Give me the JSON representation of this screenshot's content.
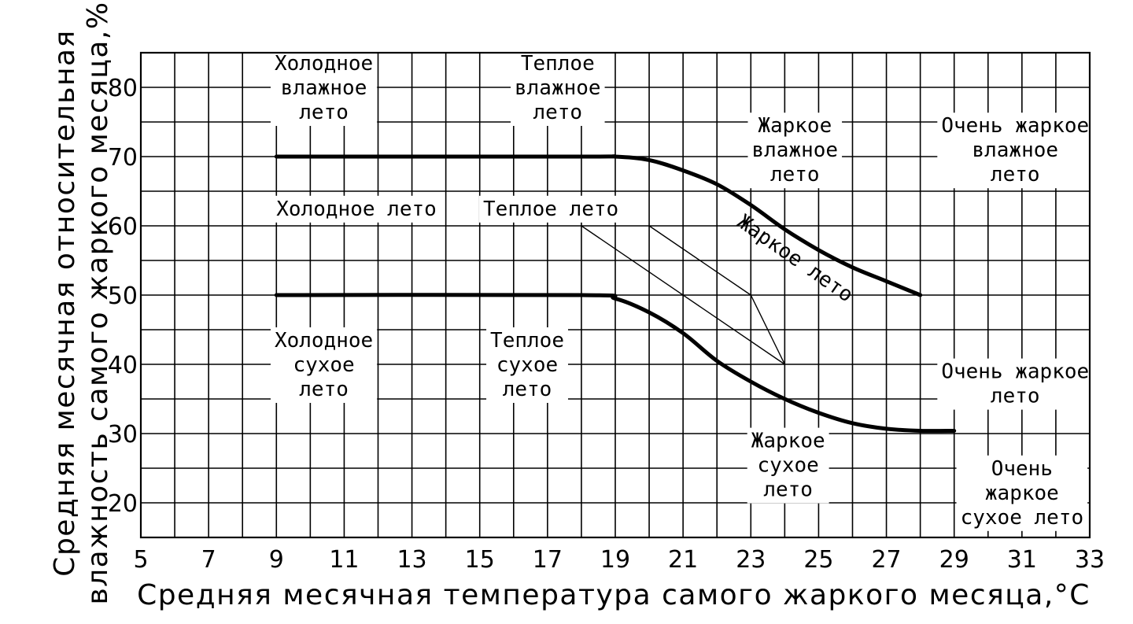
{
  "chart_data": {
    "type": "line",
    "xlabel": "Средняя месячная температура самого жаркого месяца,°С",
    "ylabel_line1": "Средняя месячная относительная",
    "ylabel_line2": "влажность самого жаркого месяца,%",
    "xlim": [
      5,
      33
    ],
    "ylim": [
      15,
      85
    ],
    "x_ticks": [
      5,
      7,
      9,
      11,
      13,
      15,
      17,
      19,
      21,
      23,
      25,
      27,
      29,
      31,
      33
    ],
    "y_ticks": [
      20,
      30,
      40,
      50,
      60,
      70,
      80
    ],
    "grid": true,
    "series": [
      {
        "x": [
          9,
          18,
          19,
          20,
          21,
          22,
          23,
          24,
          25,
          26,
          27,
          28
        ],
        "y": [
          70,
          70,
          70,
          69.5,
          68,
          66,
          63,
          59.5,
          56.5,
          54,
          52,
          50
        ]
      },
      {
        "x": [
          9,
          18,
          19,
          20,
          21,
          22,
          23,
          24,
          25,
          26,
          27,
          28,
          29
        ],
        "y": [
          50,
          50,
          49.5,
          47.5,
          44.5,
          40.5,
          37.5,
          35,
          33,
          31.5,
          30.7,
          30.4,
          30.4
        ]
      }
    ],
    "dividers": [
      {
        "x": [
          18,
          24
        ],
        "y": [
          60,
          40
        ]
      },
      {
        "x": [
          20,
          23
        ],
        "y": [
          60,
          50
        ]
      },
      {
        "x": [
          23,
          24
        ],
        "y": [
          50,
          40
        ]
      }
    ],
    "annotations": [
      {
        "lines": [
          "Холодное",
          "влажное",
          "лето"
        ],
        "x": 10.4,
        "y": 82.5,
        "align": "middle",
        "rotate": 0
      },
      {
        "lines": [
          "Теплое",
          "влажное",
          "лето"
        ],
        "x": 17.3,
        "y": 82.5,
        "align": "middle",
        "rotate": 0
      },
      {
        "lines": [
          "Жаркое",
          "влажное",
          "лето"
        ],
        "x": 24.3,
        "y": 73.5,
        "align": "middle",
        "rotate": 0
      },
      {
        "lines": [
          "Очень жаркое",
          "влажное",
          "лето"
        ],
        "x": 30.8,
        "y": 73.5,
        "align": "middle",
        "rotate": 0
      },
      {
        "lines": [
          "Холодное лето"
        ],
        "x": 9,
        "y": 61.5,
        "align": "start",
        "rotate": 0
      },
      {
        "lines": [
          "Теплое лето"
        ],
        "x": 15.1,
        "y": 61.5,
        "align": "start",
        "rotate": 0
      },
      {
        "lines": [
          "Жаркое лето"
        ],
        "x": 24.2,
        "y": 54.5,
        "align": "middle",
        "rotate": 35
      },
      {
        "lines": [
          "Холодное",
          "сухое",
          "лето"
        ],
        "x": 10.4,
        "y": 42.5,
        "align": "middle",
        "rotate": 0
      },
      {
        "lines": [
          "Теплое",
          "сухое",
          "лето"
        ],
        "x": 16.4,
        "y": 42.5,
        "align": "middle",
        "rotate": 0
      },
      {
        "lines": [
          "Очень жаркое",
          "лето"
        ],
        "x": 30.8,
        "y": 38,
        "align": "middle",
        "rotate": 0
      },
      {
        "lines": [
          "Жаркое",
          "сухое",
          "лето"
        ],
        "x": 24.1,
        "y": 28,
        "align": "middle",
        "rotate": 0
      },
      {
        "lines": [
          "Очень",
          "жаркое",
          "сухое лето"
        ],
        "x": 31,
        "y": 24,
        "align": "middle",
        "rotate": 0
      }
    ]
  }
}
